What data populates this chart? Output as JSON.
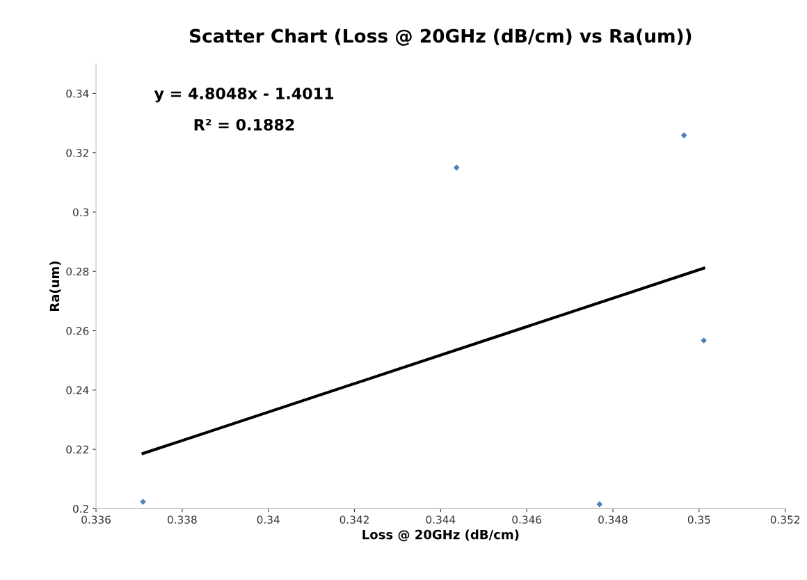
{
  "chart_data": {
    "type": "scatter",
    "title": "Scatter Chart (Loss @ 20GHz (dB/cm) vs Ra(um))",
    "xlabel": "Loss @ 20GHz (dB/cm)",
    "ylabel": "Ra(um)",
    "series": [
      {
        "color": "#4f81bd",
        "marker": "diamond",
        "x": [
          0.33709,
          0.34437,
          0.34965,
          0.35011,
          0.34769
        ],
        "values": [
          0.2023,
          0.315,
          0.3259,
          0.2567,
          0.2015
        ]
      },
      {
        "type": "line",
        "color": "#000000",
        "marker": "none",
        "x": [
          0.33709,
          0.35011
        ],
        "values": [
          0.2186,
          0.2811
        ]
      }
    ],
    "annotations": [
      "y = 4.8048x - 1.4011",
      "R² = 0.1882"
    ],
    "xlim": [
      0.336,
      0.352
    ],
    "xticks": [
      0.336,
      0.338,
      0.34,
      0.342,
      0.344,
      0.346,
      0.348,
      0.35,
      0.352
    ],
    "ylim": [
      0.2,
      0.35
    ],
    "yticks": [
      0.2,
      0.22,
      0.24,
      0.26,
      0.28,
      0.3,
      0.32,
      0.34
    ],
    "grid": false,
    "legend": false
  }
}
